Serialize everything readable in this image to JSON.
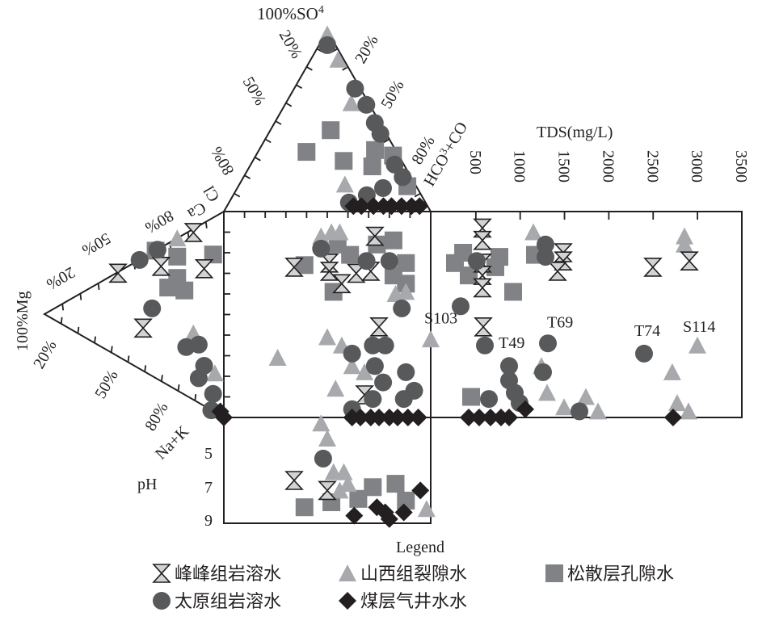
{
  "chart_data": {
    "type": "scatter",
    "diagram": "Durov",
    "labels": {
      "so4_apex": "100%SO",
      "so4_sub": "4",
      "cl_ticks": [
        "20%",
        "50%",
        "80%"
      ],
      "cl_axis": "Cl",
      "hco3_ticks": [
        "20%",
        "50%",
        "80%"
      ],
      "hco3_axis": "HCO",
      "hco3_sub": "3",
      "hco3_axis2": "+CO",
      "ca_axis": "Ca",
      "ca_ticks": [
        "80%",
        "50%",
        "20%"
      ],
      "mg_apex": "100%Mg",
      "na_ticks": [
        "20%",
        "50%",
        "80%"
      ],
      "na_axis": "Na+K",
      "ph_axis": "pH",
      "ph_ticks": [
        "5",
        "7",
        "9"
      ],
      "tds_axis": "TDS(mg/L)",
      "tds_ticks": [
        "500",
        "1000",
        "1500",
        "2000",
        "2500",
        "3000",
        "3500"
      ],
      "legend_title": "Legend"
    },
    "axes": {
      "tds_range": [
        0,
        3500
      ],
      "ph_range": [
        3,
        9
      ]
    },
    "series": [
      {
        "name": "峰峰组岩溶水",
        "marker": "hourglass",
        "color": "#d1d3d4",
        "anion_triangle": [],
        "cation_triangle": [
          [
            59,
            1
          ],
          [
            45,
            62
          ],
          [
            17,
            2
          ],
          [
            35,
            14
          ],
          [
            11,
            25
          ]
        ],
        "square": [
          [
            34,
            27
          ],
          [
            51,
            25
          ],
          [
            51,
            29
          ],
          [
            57,
            35
          ],
          [
            64,
            30
          ],
          [
            71,
            29
          ],
          [
            73,
            12
          ],
          [
            75,
            56
          ],
          [
            68,
            89
          ]
        ],
        "tds": [
          [
            574,
            8
          ],
          [
            574,
            14
          ],
          [
            574,
            25
          ],
          [
            574,
            31
          ],
          [
            574,
            37
          ],
          [
            583,
            56
          ],
          [
            1486,
            20
          ],
          [
            1486,
            24
          ],
          [
            1422,
            29
          ],
          [
            2497,
            27
          ],
          [
            2908,
            24
          ]
        ],
        "ph": [
          [
            34,
            6.7
          ],
          [
            50,
            7.3
          ]
        ]
      },
      {
        "name": "山西组裂隙水",
        "marker": "triangle",
        "color": "#a7a9ac",
        "anion_triangle": [
          [
            50,
            98
          ],
          [
            83,
            84
          ],
          [
            79,
            60
          ],
          [
            60,
            15
          ]
        ],
        "cation_triangle": [
          [
            26,
            0
          ],
          [
            17,
            61
          ],
          [
            5,
            80
          ]
        ],
        "square": [
          [
            47,
            12
          ],
          [
            52,
            10
          ],
          [
            56,
            10
          ],
          [
            26,
            71
          ],
          [
            50,
            61
          ],
          [
            57,
            65
          ],
          [
            62,
            75
          ],
          [
            68,
            78
          ],
          [
            54,
            86
          ],
          [
            83,
            40
          ],
          [
            88,
            39
          ],
          [
            100,
            62
          ]
        ],
        "tds": [
          [
            1149,
            10
          ],
          [
            2853,
            12
          ],
          [
            2853,
            16
          ],
          [
            2999,
            65
          ],
          [
            2716,
            78
          ],
          [
            1304,
            88
          ],
          [
            1741,
            90
          ],
          [
            1495,
            95
          ],
          [
            1878,
            97
          ],
          [
            2771,
            93
          ],
          [
            2899,
            97
          ],
          [
            1240,
            75
          ]
        ],
        "ph": [
          [
            47,
            3.3
          ],
          [
            50,
            4.2
          ],
          [
            53,
            6.2
          ],
          [
            58,
            6.2
          ],
          [
            60,
            6.9
          ],
          [
            56,
            7.3
          ],
          [
            98,
            8.4
          ]
        ]
      },
      {
        "name": "松散层孔隙水",
        "marker": "square",
        "color": "#808285",
        "anion_triangle": [
          [
            53,
            45
          ],
          [
            35,
            33
          ],
          [
            61,
            28
          ],
          [
            85,
            34
          ],
          [
            96,
            31
          ],
          [
            79,
            25
          ],
          [
            95,
            14
          ]
        ],
        "cation_triangle": [
          [
            38,
            0
          ],
          [
            26,
            12
          ],
          [
            26,
            26
          ],
          [
            31,
            31
          ],
          [
            22,
            35
          ],
          [
            6,
            19
          ]
        ],
        "square": [
          [
            39,
            26
          ],
          [
            53,
            39
          ],
          [
            55,
            16
          ],
          [
            61,
            21
          ],
          [
            74,
            16
          ],
          [
            82,
            14
          ],
          [
            88,
            25
          ],
          [
            82,
            31
          ],
          [
            88,
            35
          ]
        ],
        "tds": [
          [
            356,
            20
          ],
          [
            264,
            25
          ],
          [
            419,
            31
          ],
          [
            766,
            22
          ],
          [
            720,
            27
          ],
          [
            921,
            39
          ],
          [
            1167,
            21
          ],
          [
            447,
            90
          ]
        ],
        "ph": [
          [
            39,
            8.3
          ],
          [
            52,
            8.0
          ],
          [
            72,
            7.1
          ],
          [
            83,
            6.9
          ],
          [
            65,
            7.8
          ],
          [
            88,
            7.9
          ]
        ]
      },
      {
        "name": "太原组岩溶水",
        "marker": "circle",
        "color": "#58595b",
        "anion_triangle": [
          [
            50,
            92
          ],
          [
            92,
            68
          ],
          [
            96,
            59
          ],
          [
            95,
            49
          ],
          [
            95,
            43
          ],
          [
            94,
            26
          ],
          [
            95,
            19
          ],
          [
            81,
            13
          ],
          [
            71,
            9
          ],
          [
            61,
            5
          ]
        ],
        "cation_triangle": [
          [
            47,
            0
          ],
          [
            37,
            0
          ],
          [
            40,
            45
          ],
          [
            21,
            70
          ],
          [
            14,
            67
          ],
          [
            11,
            78
          ],
          [
            14,
            86
          ],
          [
            6,
            91
          ],
          [
            7,
            100
          ]
        ],
        "square": [
          [
            47,
            18
          ],
          [
            69,
            24
          ],
          [
            80,
            24
          ],
          [
            86,
            47
          ],
          [
            62,
            69
          ],
          [
            72,
            65
          ],
          [
            78,
            65
          ],
          [
            73,
            75
          ],
          [
            77,
            83
          ],
          [
            88,
            78
          ],
          [
            92,
            87
          ],
          [
            87,
            91
          ],
          [
            72,
            91
          ],
          [
            62,
            96
          ]
        ],
        "tds": [
          [
            510,
            24
          ],
          [
            328,
            46
          ],
          [
            602,
            65
          ],
          [
            1285,
            16
          ],
          [
            1285,
            22
          ],
          [
            1313,
            64
          ],
          [
            1258,
            78
          ],
          [
            875,
            75
          ],
          [
            875,
            82
          ],
          [
            939,
            88
          ],
          [
            647,
            91
          ],
          [
            1668,
            97
          ],
          [
            2397,
            69
          ],
          [
            994,
            93
          ]
        ],
        "ph": [
          [
            48,
            5.4
          ]
        ]
      },
      {
        "name": "煤层气井水水",
        "marker": "diamond",
        "color": "#231f20",
        "anion_triangle": [
          [
            63,
            3
          ],
          [
            67,
            3
          ],
          [
            73,
            3
          ],
          [
            78,
            3
          ],
          [
            82,
            3
          ],
          [
            87,
            3
          ],
          [
            92,
            3
          ],
          [
            96,
            3
          ]
        ],
        "cation_triangle": [
          [
            2,
            98
          ]
        ],
        "square": [
          [
            0,
            100
          ],
          [
            62,
            100
          ],
          [
            66,
            100
          ],
          [
            71,
            100
          ],
          [
            75,
            100
          ],
          [
            80,
            100
          ],
          [
            84,
            100
          ],
          [
            89,
            100
          ],
          [
            94,
            100
          ]
        ],
        "tds": [
          [
            419,
            100
          ],
          [
            538,
            100
          ],
          [
            665,
            100
          ],
          [
            784,
            100
          ],
          [
            875,
            100
          ],
          [
            1057,
            96
          ],
          [
            2725,
            100
          ]
        ],
        "ph": [
          [
            95,
            7.3
          ],
          [
            63,
            8.8
          ],
          [
            74,
            8.3
          ],
          [
            80,
            9.0
          ],
          [
            87,
            8.6
          ],
          [
            78,
            8.6
          ]
        ]
      }
    ],
    "annotations": [
      {
        "text": "S103",
        "tds": 100,
        "cation": 52
      },
      {
        "text": "T49",
        "tds": 940,
        "cation": 64
      },
      {
        "text": "T69",
        "tds": 1486,
        "cation": 54
      },
      {
        "text": "T74",
        "tds": 2470,
        "cation": 58
      },
      {
        "text": "S114",
        "tds": 3017,
        "cation": 56
      }
    ]
  }
}
